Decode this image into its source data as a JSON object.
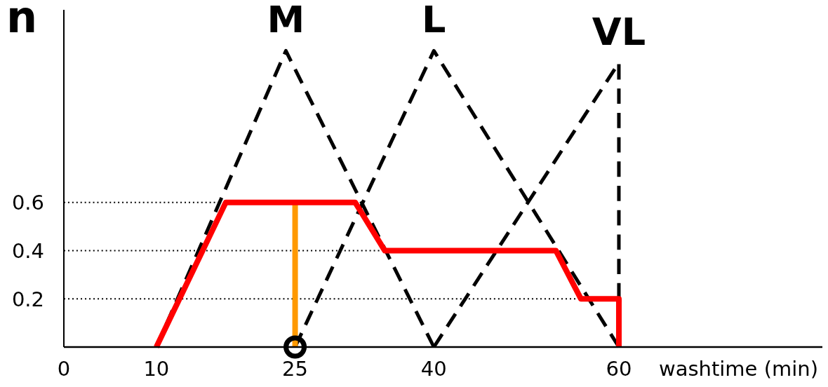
{
  "chart_data": {
    "type": "line",
    "xlabel": "washtime (min)",
    "ylabel": "n",
    "xlim": [
      0,
      82
    ],
    "xticks": [
      0,
      10,
      25,
      40,
      60
    ],
    "ylim": [
      0,
      1.4
    ],
    "yticks": [
      0.2,
      0.4,
      0.6
    ],
    "marker": "none",
    "series": [
      {
        "color": "#000000",
        "line_style": "dotted",
        "x": [
          0,
          16.8
        ],
        "values": [
          0.6,
          0.6
        ]
      },
      {
        "color": "#000000",
        "line_style": "dotted",
        "x": [
          0,
          34.1
        ],
        "values": [
          0.4,
          0.4
        ]
      },
      {
        "color": "#000000",
        "line_style": "dotted",
        "x": [
          0,
          55.3
        ],
        "values": [
          0.2,
          0.2
        ]
      },
      {
        "name": "M",
        "color": "#000000",
        "line_style": "dashed",
        "x": [
          10,
          24,
          40
        ],
        "values": [
          0,
          1.23,
          0
        ]
      },
      {
        "name": "L",
        "color": "#000000",
        "line_style": "dashed",
        "x": [
          25,
          40,
          60
        ],
        "values": [
          0,
          1.23,
          0
        ]
      },
      {
        "name": "VL",
        "color": "#000000",
        "line_style": "dashed",
        "x": [
          40,
          60,
          60
        ],
        "values": [
          0,
          1.18,
          0
        ]
      },
      {
        "color": "#ff9900",
        "line_style": "solid",
        "x": [
          25,
          25
        ],
        "values": [
          0,
          0.6
        ]
      },
      {
        "color": "#ff0000",
        "line_style": "solid",
        "x": [
          10,
          17.5,
          31.5,
          34.7,
          53.2,
          55.9,
          60,
          60
        ],
        "values": [
          0,
          0.6,
          0.6,
          0.4,
          0.4,
          0.2,
          0.2,
          0
        ]
      },
      {
        "type": "scatter",
        "color": "#000000",
        "marker": "circle",
        "x": [
          25
        ],
        "values": [
          0
        ]
      }
    ]
  }
}
